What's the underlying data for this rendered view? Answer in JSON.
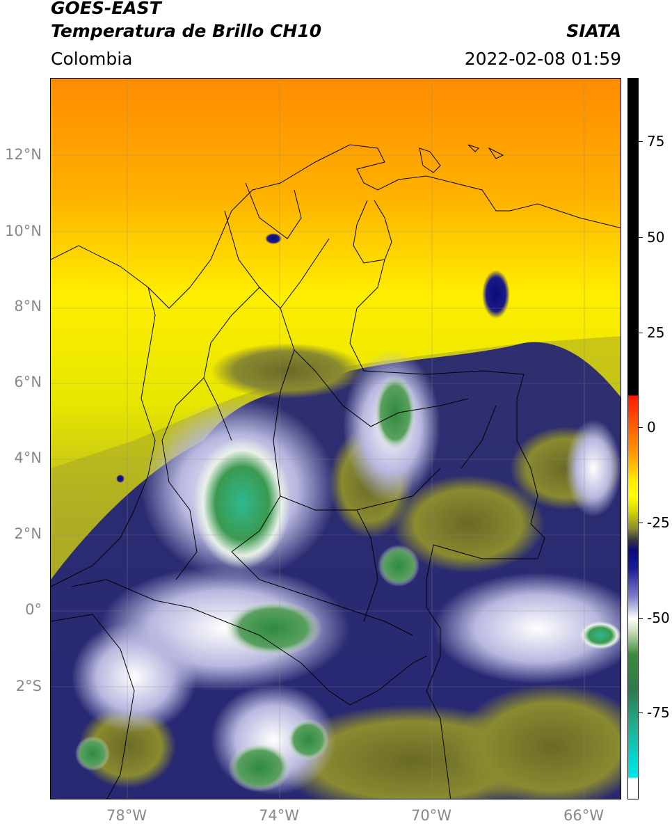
{
  "header": {
    "satellite": "GOES-EAST",
    "product": "Temperatura de Brillo CH10",
    "region": "Colombia",
    "agency": "SIATA",
    "datetime": "2022-02-08 01:59"
  },
  "map": {
    "type": "satellite brightness temperature map",
    "lat_range": [
      -5,
      14
    ],
    "lon_range": [
      -80,
      -65
    ],
    "grid": true,
    "lat_labels": [
      "12°N",
      "10°N",
      "8°N",
      "6°N",
      "4°N",
      "2°N",
      "0°",
      "2°S"
    ],
    "lon_labels": [
      "78°W",
      "74°W",
      "70°W",
      "66°W"
    ],
    "features": [
      "coastlines",
      "country borders",
      "department borders"
    ]
  },
  "colorbar": {
    "ticks": [
      "75",
      "50",
      "25",
      "0",
      "-25",
      "-50",
      "-75"
    ],
    "range": [
      -97,
      90
    ],
    "colors": {
      "warm_black": "#000000",
      "red": "#ff1a00",
      "orange": "#ff9a00",
      "yellow": "#ffff00",
      "olive": "#c0c000",
      "dark_olive": "#5a5a20",
      "navy": "#0a0a78",
      "white": "#ffffff",
      "green": "#2e8b2e",
      "teal": "#20c0a0",
      "cyan": "#00e6e6"
    }
  }
}
